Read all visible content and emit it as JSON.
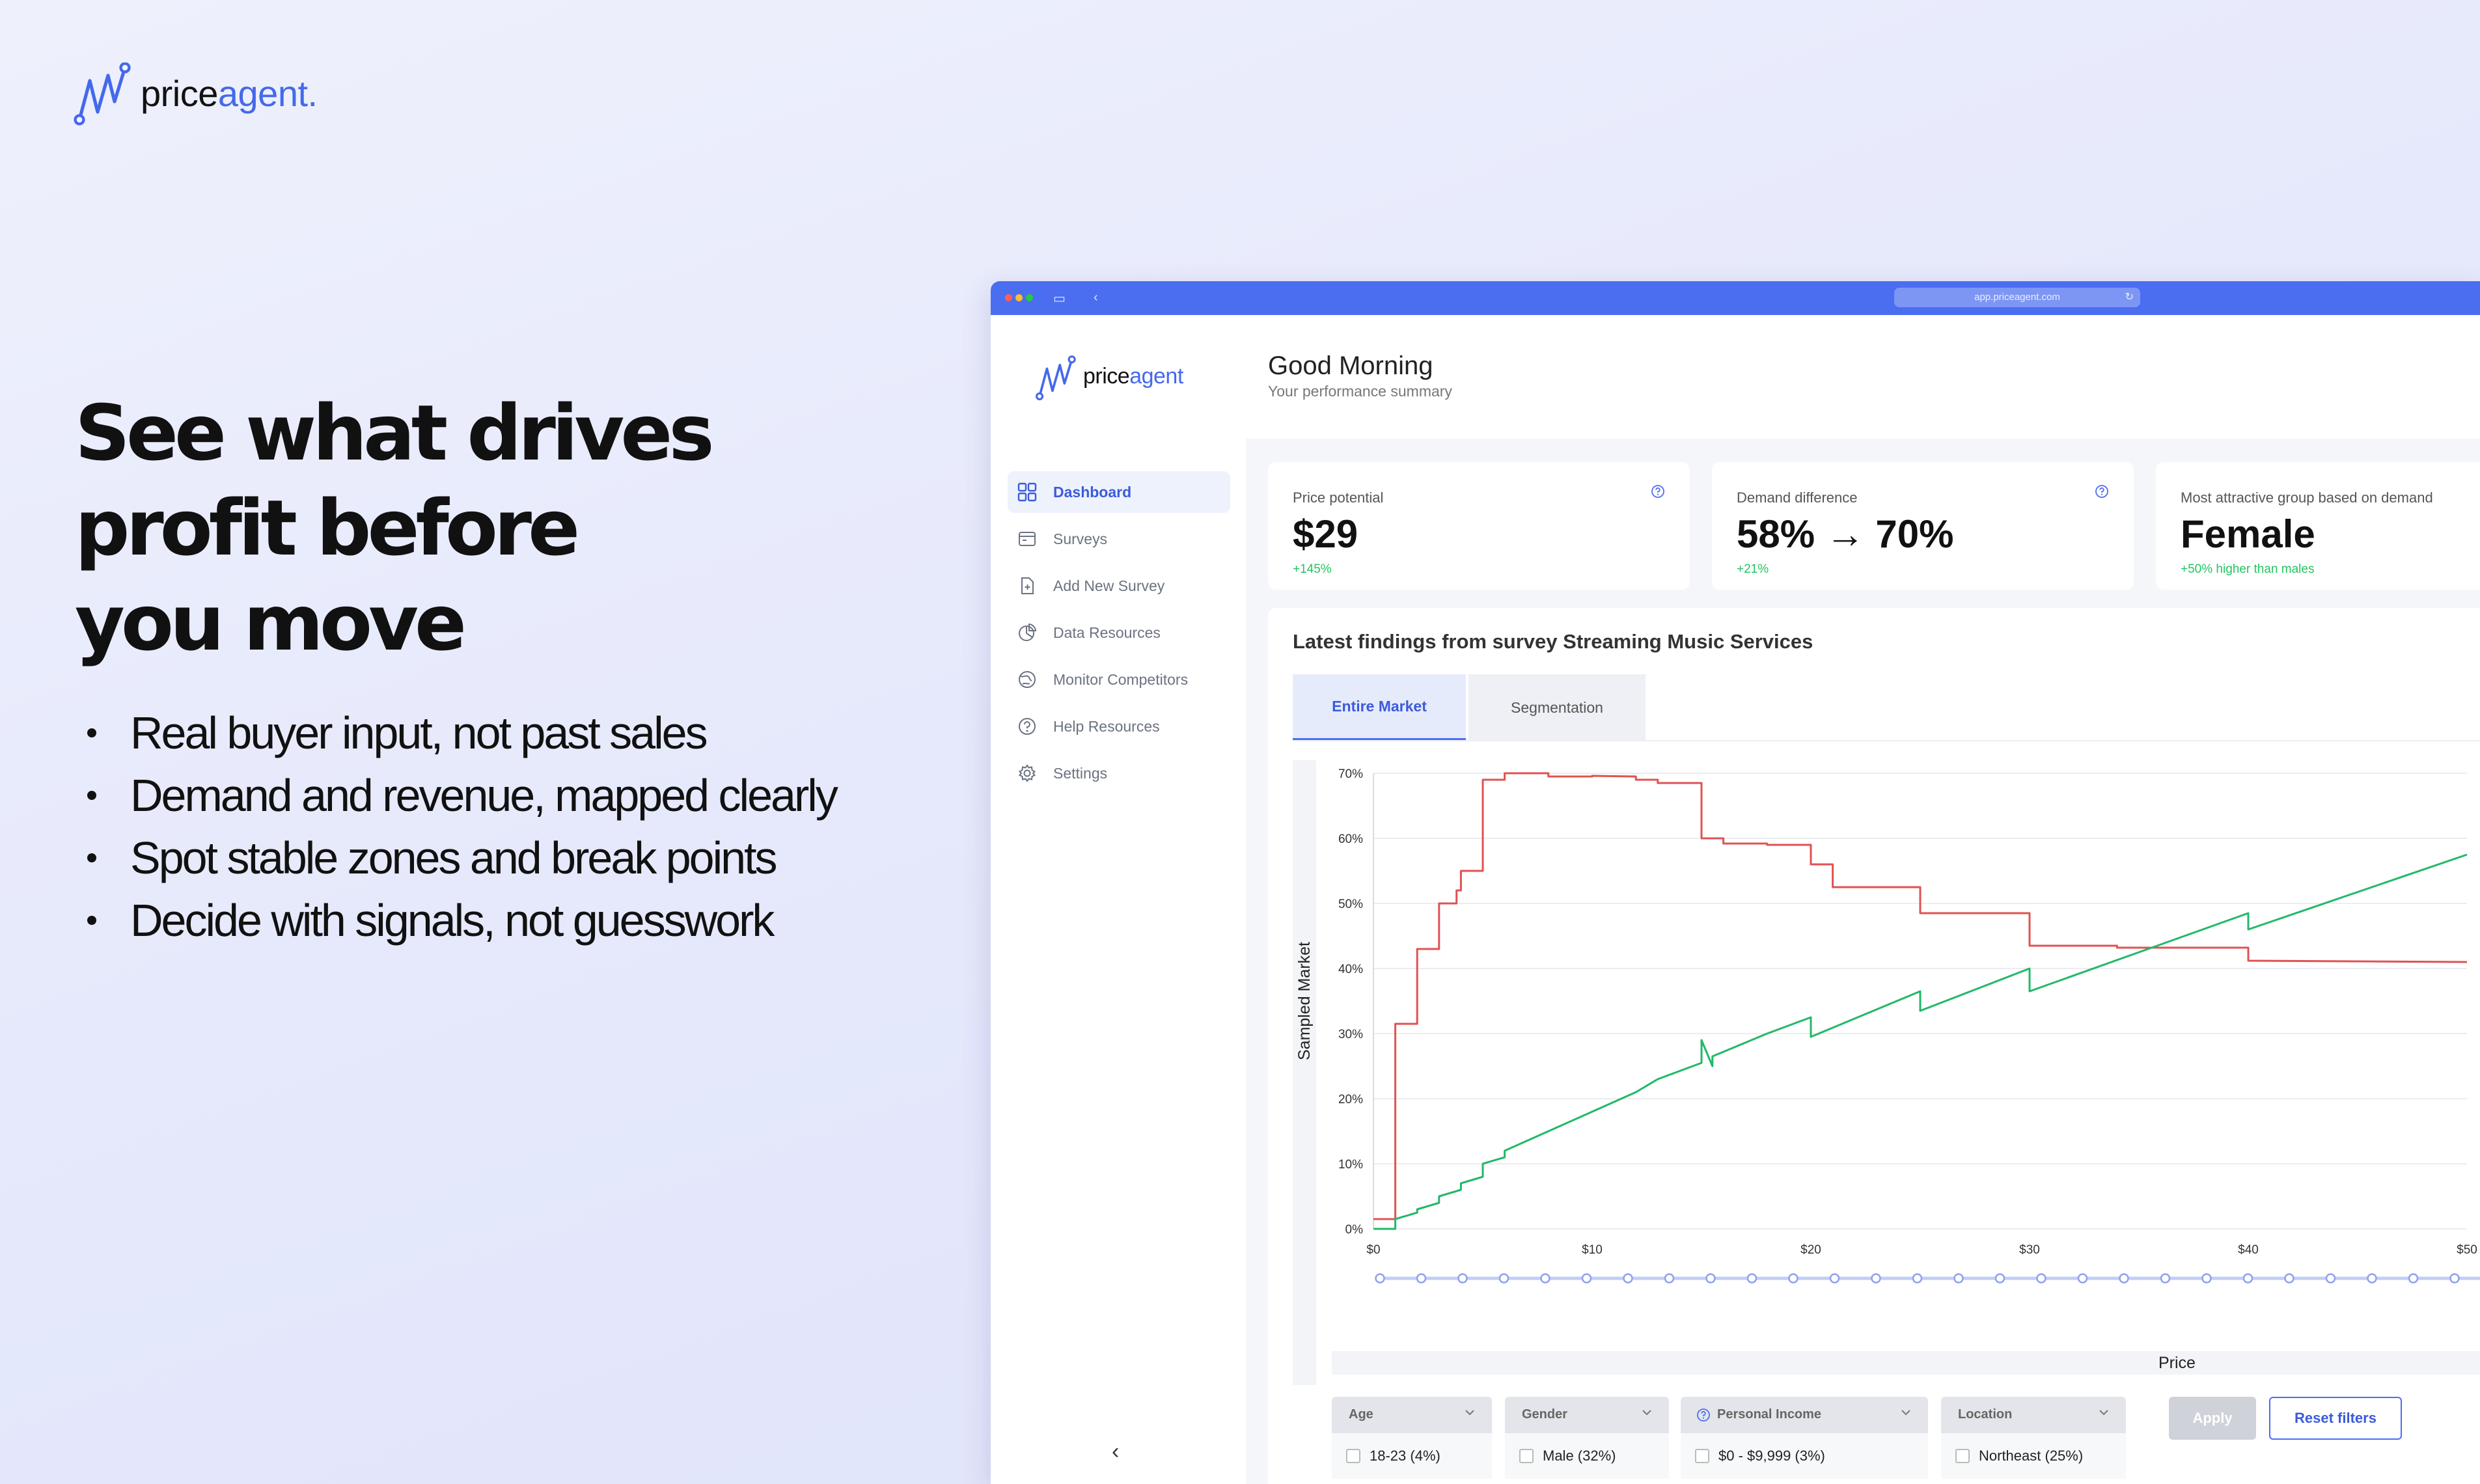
{
  "brand": {
    "name_part1": "price",
    "name_part2": "agent."
  },
  "headline": {
    "lines": [
      "See what drives",
      "profit before",
      "you move"
    ]
  },
  "bullets": [
    "Real buyer input, not past sales",
    "Demand and revenue, mapped clearly",
    "Spot stable zones and break points",
    "Decide with signals, not guesswork"
  ],
  "browser": {
    "url": "app.priceagent.com"
  },
  "app": {
    "brand": {
      "part1": "price",
      "part2": "agent"
    },
    "nav": [
      {
        "label": "Dashboard",
        "icon": "dashboard-icon",
        "active": true
      },
      {
        "label": "Surveys",
        "icon": "survey-icon"
      },
      {
        "label": "Add New Survey",
        "icon": "add-file-icon"
      },
      {
        "label": "Data Resources",
        "icon": "pie-chart-icon"
      },
      {
        "label": "Monitor Competitors",
        "icon": "globe-icon"
      },
      {
        "label": "Help Resources",
        "icon": "help-icon"
      },
      {
        "label": "Settings",
        "icon": "gear-icon"
      }
    ],
    "collapse_label": "‹",
    "greeting": "Good Morning",
    "greeting_sub": "Your performance summary",
    "cards": [
      {
        "label": "Price potential",
        "value": "$29",
        "change": "+145%"
      },
      {
        "label": "Demand difference",
        "value": "58% → 70%",
        "change": "+21%"
      },
      {
        "label": "Most attractive group based on demand",
        "value": "Female",
        "change": "+50% higher than males"
      }
    ],
    "panel_title": "Latest findings from survey Streaming Music Services",
    "tabs": [
      "Entire Market",
      "Segmentation"
    ],
    "x_axis_label": "Price",
    "filters": [
      {
        "label": "Age",
        "option": "18-23 (4%)"
      },
      {
        "label": "Gender",
        "option": "Male (32%)"
      },
      {
        "label": "Personal Income",
        "option": "$0 - $9,999 (3%)"
      },
      {
        "label": "Location",
        "option": "Northeast (25%)"
      }
    ],
    "apply_label": "Apply",
    "reset_label": "Reset filters"
  },
  "colors": {
    "accent": "#4b6ef0",
    "red_series": "#e05252",
    "green_series": "#22b86a"
  },
  "chart_data": {
    "type": "line",
    "ylabel": "Sampled Market",
    "xlabel": "Price",
    "xlim": [
      0,
      50
    ],
    "ylim": [
      0,
      70
    ],
    "x_ticks": [
      "$0",
      "$10",
      "$20",
      "$30",
      "$40",
      "$50"
    ],
    "y_ticks": [
      "0%",
      "10%",
      "20%",
      "30%",
      "40%",
      "50%",
      "60%",
      "70%"
    ],
    "grid": true,
    "series": [
      {
        "color": "#e05252",
        "points": [
          [
            0,
            1.5
          ],
          [
            1,
            1.5
          ],
          [
            1,
            31.5
          ],
          [
            2,
            31.5
          ],
          [
            2,
            43
          ],
          [
            3,
            43
          ],
          [
            3,
            50
          ],
          [
            3.8,
            50
          ],
          [
            3.8,
            52
          ],
          [
            4,
            52
          ],
          [
            4,
            55
          ],
          [
            5,
            55
          ],
          [
            5,
            69
          ],
          [
            6,
            69
          ],
          [
            6,
            70
          ],
          [
            8,
            70
          ],
          [
            8,
            69.5
          ],
          [
            10,
            69.5
          ],
          [
            10,
            69.6
          ],
          [
            12,
            69.5
          ],
          [
            12,
            69
          ],
          [
            13,
            69
          ],
          [
            13,
            68.5
          ],
          [
            15,
            68.5
          ],
          [
            15,
            60
          ],
          [
            16,
            60
          ],
          [
            16,
            59.2
          ],
          [
            18,
            59.2
          ],
          [
            18,
            59
          ],
          [
            20,
            59
          ],
          [
            20,
            56
          ],
          [
            21,
            56
          ],
          [
            21,
            52.5
          ],
          [
            25,
            52.5
          ],
          [
            25,
            48.5
          ],
          [
            30,
            48.5
          ],
          [
            30,
            43.5
          ],
          [
            34,
            43.5
          ],
          [
            34,
            43.2
          ],
          [
            40,
            43.2
          ],
          [
            40,
            41.2
          ],
          [
            50,
            41
          ]
        ]
      },
      {
        "color": "#22b86a",
        "points": [
          [
            0,
            0
          ],
          [
            1,
            0
          ],
          [
            1,
            1.5
          ],
          [
            2,
            2.5
          ],
          [
            2,
            3
          ],
          [
            3,
            4
          ],
          [
            3,
            5
          ],
          [
            4,
            6
          ],
          [
            4,
            7
          ],
          [
            5,
            8
          ],
          [
            5,
            10
          ],
          [
            6,
            11
          ],
          [
            6,
            12
          ],
          [
            7,
            13.5
          ],
          [
            8,
            15
          ],
          [
            10,
            18
          ],
          [
            12,
            21
          ],
          [
            13,
            23
          ],
          [
            15,
            25.5
          ],
          [
            15,
            29
          ],
          [
            15.5,
            25
          ],
          [
            15.5,
            26.5
          ],
          [
            18,
            30
          ],
          [
            20,
            32.5
          ],
          [
            20,
            29.5
          ],
          [
            25,
            36.5
          ],
          [
            25,
            33.5
          ],
          [
            30,
            40
          ],
          [
            30,
            36.5
          ],
          [
            40,
            48.5
          ],
          [
            40,
            46
          ],
          [
            50,
            57.5
          ]
        ]
      }
    ]
  }
}
